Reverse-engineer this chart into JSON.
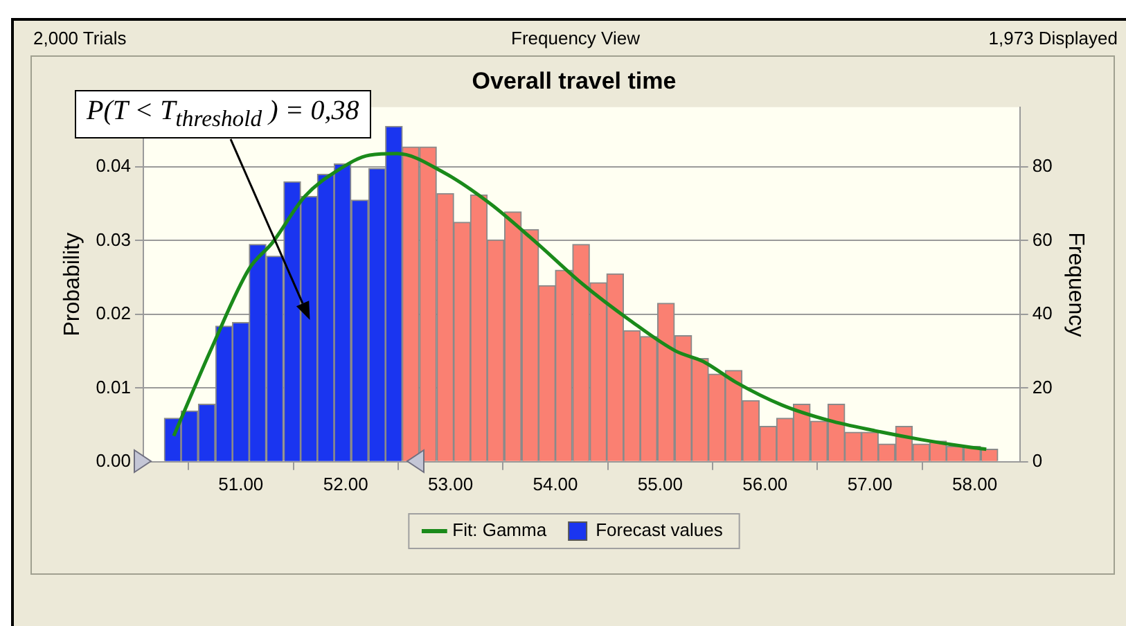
{
  "chart_data": {
    "type": "histogram",
    "title": "Overall travel time",
    "subtitle": "Frequency View",
    "annotations": [
      "2,000 Trials",
      "1,973 Displayed",
      "P(T < T$_{threshold}$ ) = 0,38"
    ],
    "xlim": [
      50.07,
      58.43
    ],
    "xticks": [
      {
        "value": 51,
        "label": "51.00"
      },
      {
        "value": 52,
        "label": "52.00"
      },
      {
        "value": 53,
        "label": "53.00"
      },
      {
        "value": 54,
        "label": "54.00"
      },
      {
        "value": 55,
        "label": "55.00"
      },
      {
        "value": 56,
        "label": "56.00"
      },
      {
        "value": 57,
        "label": "57.00"
      },
      {
        "value": 58,
        "label": "58.00"
      }
    ],
    "ylabel": "Probability",
    "ylim": [
      0,
      0.0481
    ],
    "yticks": [
      {
        "value": 0,
        "label": "0.00"
      },
      0.01,
      0.02,
      0.03,
      0.04
    ],
    "y2label": "Frequency",
    "y2lim": [
      0,
      96.2
    ],
    "y2ticks": [
      0,
      20,
      40,
      60,
      80
    ],
    "grid": "y",
    "legend": "bottom",
    "bins": [
      50.27,
      50.43,
      50.59,
      50.76,
      50.92,
      51.08,
      51.24,
      51.41,
      51.57,
      51.73,
      51.89,
      52.05,
      52.22,
      52.38,
      52.54,
      52.7,
      52.87,
      53.03,
      53.19,
      53.35,
      53.51,
      53.68,
      53.84,
      54.0,
      54.16,
      54.33,
      54.49,
      54.65,
      54.81,
      54.97,
      55.14,
      55.3,
      55.46,
      55.62,
      55.78,
      55.95,
      56.11,
      56.27,
      56.43,
      56.6,
      56.76,
      56.92,
      57.08,
      57.24,
      57.41,
      57.57,
      57.73,
      57.89,
      58.06,
      58.22
    ],
    "series": [
      {
        "name": "Fit: Gamma",
        "type": "line",
        "color": "#1a8a1a",
        "marker": "none",
        "x": [
          50.36,
          50.73,
          51.08,
          51.3,
          51.61,
          51.92,
          52.23,
          52.49,
          52.94,
          53.38,
          53.82,
          54.26,
          54.71,
          55.15,
          55.41,
          55.72,
          56.16,
          56.61,
          57.05,
          57.49,
          57.94,
          58.11
        ],
        "values": [
          0.0035,
          0.0157,
          0.0262,
          0.0297,
          0.036,
          0.0395,
          0.0416,
          0.0418,
          0.0392,
          0.035,
          0.0297,
          0.0241,
          0.0192,
          0.015,
          0.0136,
          0.0108,
          0.0077,
          0.0056,
          0.0042,
          0.003,
          0.002,
          0.0017
        ]
      },
      {
        "name": "Forecast values",
        "color": "#1a35f0",
        "colors": [
          "#1a35f0",
          "#1a35f0",
          "#1a35f0",
          "#1a35f0",
          "#1a35f0",
          "#1a35f0",
          "#1a35f0",
          "#1a35f0",
          "#1a35f0",
          "#1a35f0",
          "#1a35f0",
          "#1a35f0",
          "#1a35f0",
          "#1a35f0",
          "#fa8072",
          "#fa8072",
          "#fa8072",
          "#fa8072",
          "#fa8072",
          "#fa8072",
          "#fa8072",
          "#fa8072",
          "#fa8072",
          "#fa8072",
          "#fa8072",
          "#fa8072",
          "#fa8072",
          "#fa8072",
          "#fa8072",
          "#fa8072",
          "#fa8072",
          "#fa8072",
          "#fa8072",
          "#fa8072",
          "#fa8072",
          "#fa8072",
          "#fa8072",
          "#fa8072",
          "#fa8072",
          "#fa8072",
          "#fa8072",
          "#fa8072",
          "#fa8072",
          "#fa8072",
          "#fa8072",
          "#fa8072",
          "#fa8072",
          "#fa8072",
          "#fa8072"
        ],
        "values": [
          0.0059,
          0.0069,
          0.0078,
          0.0184,
          0.0189,
          0.0295,
          0.0279,
          0.038,
          0.036,
          0.039,
          0.0404,
          0.0355,
          0.0398,
          0.0455,
          0.0427,
          0.0427,
          0.0364,
          0.0325,
          0.0362,
          0.0301,
          0.0339,
          0.0315,
          0.0239,
          0.026,
          0.0295,
          0.0243,
          0.0255,
          0.0178,
          0.017,
          0.0215,
          0.0171,
          0.014,
          0.0119,
          0.0124,
          0.0083,
          0.0048,
          0.0059,
          0.0078,
          0.0055,
          0.0078,
          0.004,
          0.004,
          0.0024,
          0.0048,
          0.0024,
          0.0028,
          0.0021,
          0.0021,
          0.0017
        ]
      }
    ]
  }
}
